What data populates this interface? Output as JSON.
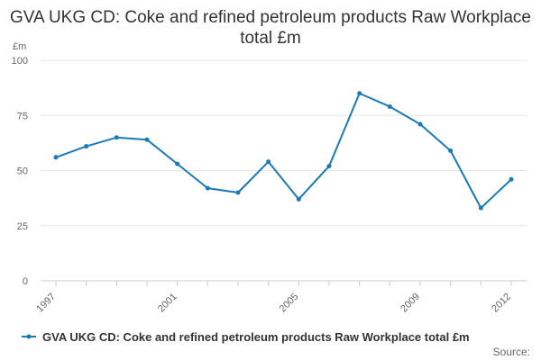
{
  "chart_data": {
    "type": "line",
    "title": "GVA UKG CD: Coke and refined petroleum products Raw Workplace total £m",
    "unit_label": "£m",
    "x": [
      1997,
      1998,
      1999,
      2000,
      2001,
      2002,
      2003,
      2004,
      2005,
      2006,
      2007,
      2008,
      2009,
      2010,
      2011,
      2012
    ],
    "x_tick_labels": [
      "1997",
      "2001",
      "2005",
      "2009",
      "2012"
    ],
    "y_ticks": [
      0,
      25,
      50,
      75,
      100
    ],
    "ylim": [
      0,
      100
    ],
    "grid": true,
    "legend_position": "bottom",
    "series": [
      {
        "name": "GVA UKG CD: Coke and refined petroleum products Raw Workplace total £m",
        "color": "#1a7ab8",
        "values": [
          56,
          61,
          65,
          64,
          53,
          42,
          40,
          54,
          37,
          52,
          85,
          79,
          71,
          59,
          33,
          46
        ]
      }
    ],
    "source": "Source:"
  }
}
